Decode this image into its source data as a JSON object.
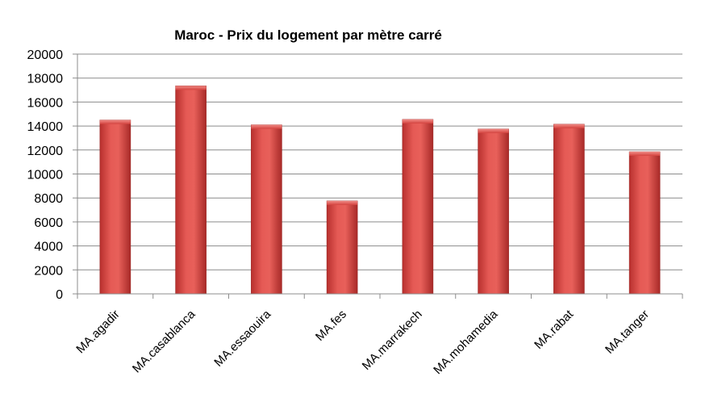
{
  "chart_data": {
    "type": "bar",
    "title": "Maroc - Prix du logement par mètre carré",
    "xlabel": "",
    "ylabel": "",
    "categories": [
      "MA.agadir",
      "MA.casablanca",
      "MA.essaouira",
      "MA.fes",
      "MA.marrakech",
      "MA.mohamedia",
      "MA.rabat",
      "MA.tanger"
    ],
    "values": [
      14500,
      17350,
      14100,
      7750,
      14550,
      13750,
      14150,
      11850
    ],
    "ylim": [
      0,
      20000
    ],
    "yticks": [
      "0",
      "2000",
      "4000",
      "6000",
      "8000",
      "10000",
      "12000",
      "14000",
      "16000",
      "18000",
      "20000"
    ],
    "grid": true,
    "legend": "none",
    "bar_color": "#e0504c"
  }
}
